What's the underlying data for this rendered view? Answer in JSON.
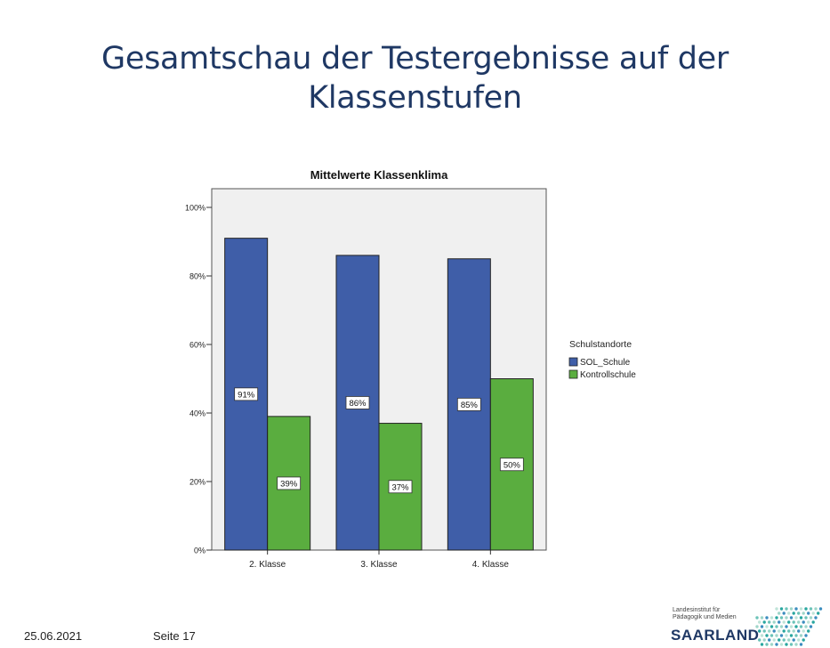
{
  "slide": {
    "title_line1": "Gesamtschau  der Testergebnisse auf der",
    "title_line2": "Klassenstufen"
  },
  "footer": {
    "date": "25.06.2021",
    "page": "Seite 17"
  },
  "logo": {
    "institute_line1": "Landesinstitut für",
    "institute_line2": "Pädagogik und Medien",
    "word": "SAARLAND"
  },
  "chart_data": {
    "type": "bar",
    "title": "Mittelwerte Klassenklima",
    "xlabel": "",
    "ylabel": "",
    "categories": [
      "2. Klasse",
      "3. Klasse",
      "4. Klasse"
    ],
    "series": [
      {
        "name": "SOL_Schule",
        "color": "#3f5ea8",
        "values": [
          91,
          86,
          85
        ],
        "labels": [
          "91%",
          "86%",
          "85%"
        ]
      },
      {
        "name": "Kontrollschule",
        "color": "#5aad3f",
        "values": [
          39,
          37,
          50
        ],
        "labels": [
          "39%",
          "37%",
          "50%"
        ]
      }
    ],
    "ylim": [
      0,
      100
    ],
    "yticks": [
      0,
      20,
      40,
      60,
      80,
      100
    ],
    "ytick_labels": [
      "0%",
      "20%",
      "40%",
      "60%",
      "80%",
      "100%"
    ],
    "legend_title": "Schulstandorte",
    "legend_position": "right",
    "grid": false,
    "plot_background": "#f0f0f0"
  }
}
